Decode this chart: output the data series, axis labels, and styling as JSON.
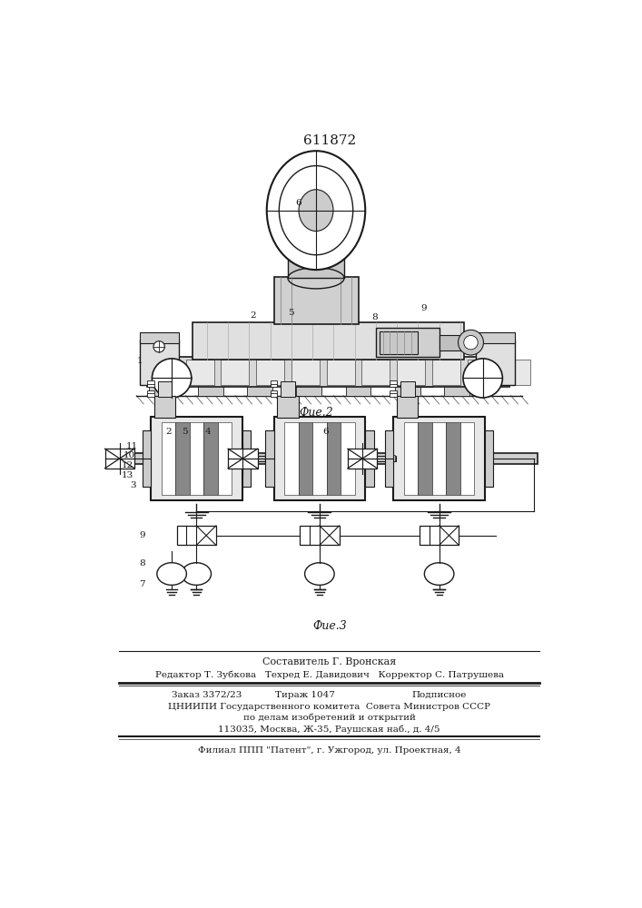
{
  "title_number": "611872",
  "fig2_label": "Фие.2",
  "fig3_label": "Фие.3",
  "footer_line1": "Составитель Г. Вронская",
  "footer_line2": "Редактор Т. Зубкова   Техред Е. Давидович   Корректор С. Патрушева",
  "footer_order": "Заказ 3372/23",
  "footer_tiraj": "Тираж 1047",
  "footer_podp": "Подписное",
  "footer_line4": "ЦНИИПИ Государственного комитета  Совета Министров СССР",
  "footer_line5": "по делам изобретений и открытий",
  "footer_line6": "113035, Москва, Ж-35, Раушская наб., д. 4/5",
  "footer_line7": "Филиал ППП \"Патент\", г. Ужгород, ул. Проектная, 4",
  "bg_color": "#ffffff",
  "lc": "#1a1a1a"
}
